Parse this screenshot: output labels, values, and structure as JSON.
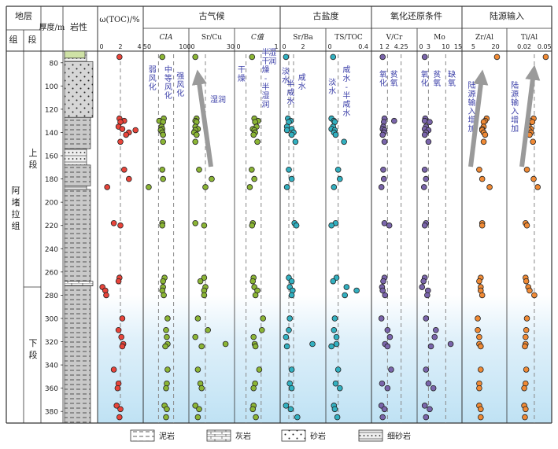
{
  "chart_data": {
    "type": "scatter",
    "header": {
      "stratum": "地层",
      "formation_col": "组",
      "member_col": "段",
      "depth_label": "厚度/m",
      "lithology_label": "岩性",
      "toc_label": "ω(TOC)/%",
      "groups": [
        "古气候",
        "古盐度",
        "氧化还原条件",
        "陆源输入"
      ]
    },
    "formation": "阿堵拉组",
    "members": [
      "上段",
      "下段"
    ],
    "depth": {
      "min": 70,
      "max": 390,
      "ticks": [
        80,
        100,
        120,
        140,
        160,
        180,
        200,
        220,
        240,
        260,
        280,
        300,
        320,
        340,
        360,
        380
      ]
    },
    "lithology_column": [
      {
        "from": 70,
        "to": 79,
        "type": "细砂岩"
      },
      {
        "from": 79,
        "to": 127,
        "type": "砂岩"
      },
      {
        "from": 127,
        "to": 154,
        "type": "泥岩"
      },
      {
        "from": 154,
        "to": 168,
        "type": "细砂岩"
      },
      {
        "from": 168,
        "to": 186,
        "type": "泥岩"
      },
      {
        "from": 186,
        "to": 189,
        "type": "细砂岩"
      },
      {
        "from": 189,
        "to": 268,
        "type": "泥岩"
      },
      {
        "from": 268,
        "to": 272,
        "type": "灰岩"
      },
      {
        "from": 272,
        "to": 390,
        "type": "泥岩"
      }
    ],
    "legend": [
      {
        "label": "泥岩",
        "pattern": "mudstone"
      },
      {
        "label": "灰岩",
        "pattern": "limestone"
      },
      {
        "label": "砂岩",
        "pattern": "sandstone"
      },
      {
        "label": "细砂岩",
        "pattern": "finesandstone"
      }
    ],
    "depths": [
      75,
      128,
      130,
      131,
      135,
      137,
      138,
      140,
      142,
      148,
      172,
      180,
      187,
      218,
      220,
      265,
      268,
      273,
      276,
      280,
      300,
      310,
      316,
      322,
      324,
      344,
      356,
      360,
      375,
      378,
      385
    ],
    "panels": [
      {
        "id": "toc",
        "label": "ω(TOC)/%",
        "range": [
          0,
          4
        ],
        "ticks": [
          "0",
          "2",
          "4"
        ],
        "dashed": [
          2
        ],
        "color": "#e8443a",
        "values": [
          1.9,
          1.9,
          2.4,
          2.0,
          1.8,
          2.2,
          3.6,
          2.9,
          2.6,
          2.0,
          2.4,
          2.9,
          0.6,
          1.3,
          2.0,
          1.9,
          1.8,
          0.1,
          0.4,
          0.5,
          2.2,
          1.8,
          2.1,
          2.3,
          2.2,
          1.3,
          1.8,
          1.7,
          1.6,
          2.0,
          1.9
        ],
        "annotations": []
      },
      {
        "id": "cia",
        "label": "CIA",
        "range": [
          50,
          100
        ],
        "ticks": [
          "50",
          "100"
        ],
        "dashed": [
          65,
          85
        ],
        "color": "#8bb535",
        "values": [
          70,
          72,
          66,
          71,
          69,
          70,
          68,
          70,
          71,
          71,
          70,
          71,
          52,
          70,
          70,
          73,
          71,
          71,
          70,
          72,
          77,
          75,
          76,
          77,
          74,
          77,
          76,
          75,
          73,
          76,
          75
        ],
        "annotations": [
          {
            "text": "弱风化",
            "at": 57
          },
          {
            "text": "中等风化",
            "at": 78
          },
          {
            "text": "强风化",
            "at": 94
          }
        ]
      },
      {
        "id": "srcu",
        "label": "Sr/Cu",
        "range": [
          0,
          30
        ],
        "ticks": [
          "0",
          "30"
        ],
        "dashed": [
          10
        ],
        "color": "#8bb535",
        "values": [
          2,
          3,
          2,
          3,
          2,
          4,
          2,
          1,
          3,
          2,
          5,
          15,
          10,
          2,
          9,
          9,
          6,
          10,
          9,
          9,
          4,
          12,
          2,
          26,
          7,
          4,
          6,
          7,
          2,
          5,
          4
        ],
        "annotations": [
          {
            "text": "湿润",
            "at": 18
          }
        ]
      },
      {
        "id": "c",
        "label": "C值",
        "range": [
          0,
          1
        ],
        "ticks": [
          "0",
          "1"
        ],
        "dashed": [
          0.2,
          0.6
        ],
        "color": "#8bb535",
        "values": [
          0.36,
          0.42,
          0.52,
          0.44,
          0.48,
          0.38,
          0.42,
          0.44,
          0.4,
          0.5,
          0.35,
          0.42,
          0.3,
          0.38,
          0.36,
          0.4,
          0.38,
          0.42,
          0.5,
          0.45,
          0.65,
          0.62,
          0.4,
          0.43,
          0.45,
          0.55,
          0.44,
          0.4,
          0.4,
          0.38,
          0.46
        ],
        "annotations": [
          {
            "text": "干燥",
            "at": 0.08
          },
          {
            "text": "半干燥-半湿润",
            "at": 0.72
          },
          {
            "text": "湿润",
            "at": 0.9
          }
        ]
      },
      {
        "id": "srba",
        "label": "Sr/Ba",
        "range": [
          0,
          4
        ],
        "ticks": [
          "0",
          "2"
        ],
        "dashed": [
          0.5,
          1.0
        ],
        "color": "#32b0c0",
        "values": [
          0.2,
          0.4,
          0.7,
          0.5,
          0.3,
          0.8,
          0.3,
          1.0,
          0.8,
          1.2,
          0.5,
          0.8,
          0.3,
          1.1,
          1.3,
          0.5,
          0.8,
          0.6,
          0.9,
          0.8,
          0.6,
          0.5,
          0.2,
          3.0,
          0.3,
          0.8,
          0.6,
          0.8,
          0.2,
          0.7,
          1.4
        ],
        "annotations": [
          {
            "text": "淡水",
            "at": 0.15
          },
          {
            "text": "半咸水",
            "at": 0.7
          },
          {
            "text": "咸水",
            "at": 1.9
          }
        ]
      },
      {
        "id": "tstoc",
        "label": "TS/TOC",
        "range": [
          0,
          0.45
        ],
        "ticks": [
          "0",
          "0.4"
        ],
        "dashed": [
          0.1
        ],
        "color": "#32b0c0",
        "values": [
          0.04,
          0.02,
          0.05,
          0.06,
          0.04,
          0.02,
          0.06,
          0.05,
          0.07,
          0.17,
          0.1,
          0.12,
          0.05,
          0.07,
          0.02,
          0.08,
          0.04,
          0.2,
          0.32,
          0.18,
          0.06,
          0.05,
          0.08,
          0.08,
          0.02,
          0.1,
          0.07,
          0.12,
          0.05,
          0.06,
          0.09
        ],
        "annotations": [
          {
            "text": "淡水",
            "at": 0.03
          },
          {
            "text": "咸水-半咸水",
            "at": 0.2
          }
        ]
      },
      {
        "id": "vcr",
        "label": "V/Cr",
        "range": [
          0,
          6.25
        ],
        "ticks": [
          "1",
          "2",
          "4.25"
        ],
        "dashed": [
          2,
          4.25
        ],
        "color": "#7a65ab",
        "values": [
          1.2,
          1.5,
          3.1,
          1.4,
          1.3,
          1.2,
          1.5,
          1.4,
          1.2,
          1.5,
          1.3,
          1.4,
          1.0,
          1.5,
          2.3,
          1.5,
          1.3,
          1.1,
          1.2,
          1.6,
          1.0,
          2.0,
          2.4,
          1.6,
          2.0,
          2.6,
          1.1,
          2.0,
          1.0,
          1.5,
          1.2
        ],
        "annotations": [
          {
            "text": "氧化",
            "at": 1.3
          },
          {
            "text": "贫氧",
            "at": 3.1
          }
        ]
      },
      {
        "id": "mo",
        "label": "Mo",
        "range": [
          0,
          15
        ],
        "ticks": [
          "0",
          "3",
          "10",
          "15"
        ],
        "dashed": [
          3,
          10
        ],
        "color": "#7a65ab",
        "values": [
          1.5,
          1.7,
          1.5,
          3.5,
          2.0,
          1.5,
          3.0,
          2.0,
          1.5,
          3.0,
          1.5,
          2.0,
          1.2,
          2.0,
          1.5,
          1.5,
          1.0,
          0.4,
          2.8,
          2.5,
          2.0,
          6.0,
          5.5,
          12.0,
          4.0,
          2.0,
          3.0,
          5.0,
          1.5,
          3.5,
          2.0
        ],
        "annotations": [
          {
            "text": "氧化",
            "at": 1.5
          },
          {
            "text": "贫氧",
            "at": 6.5
          },
          {
            "text": "缺氧",
            "at": 12.5
          }
        ]
      },
      {
        "id": "zral",
        "label": "Zr/Al",
        "range": [
          0,
          25
        ],
        "ticks": [
          "5",
          "20"
        ],
        "dashed": [],
        "color": "#f08a35",
        "values": [
          21,
          14,
          13,
          12,
          12,
          11,
          11,
          12,
          13,
          12,
          9,
          11,
          16,
          11,
          11,
          10,
          9,
          10,
          10,
          11,
          8,
          8,
          9,
          9,
          10,
          10,
          9,
          9,
          9,
          10,
          10
        ],
        "annotations": [
          {
            "text": "陆源输入增加",
            "at": 4
          }
        ]
      },
      {
        "id": "tial",
        "label": "Ti/Al",
        "range": [
          0,
          0.055
        ],
        "ticks": [
          "0.02",
          "0.05"
        ],
        "dashed": [
          0.035
        ],
        "color": "#f08a35",
        "values": [
          0.052,
          0.034,
          0.029,
          0.032,
          0.027,
          0.03,
          0.027,
          0.03,
          0.028,
          0.033,
          0.024,
          0.034,
          0.04,
          0.022,
          0.024,
          0.022,
          0.023,
          0.026,
          0.028,
          0.035,
          0.024,
          0.023,
          0.022,
          0.022,
          0.021,
          0.023,
          0.022,
          0.02,
          0.02,
          0.022,
          0.021
        ],
        "annotations": [
          {
            "text": "陆源输入增加",
            "at": 0.006
          }
        ]
      }
    ]
  },
  "colors": {
    "frame": "#333333",
    "dash": "#888888",
    "arrow": "#9a9a9a",
    "water_top": "#ffffff",
    "water_bottom": "#bfe2f4",
    "annotation": "#3b3fa8"
  }
}
